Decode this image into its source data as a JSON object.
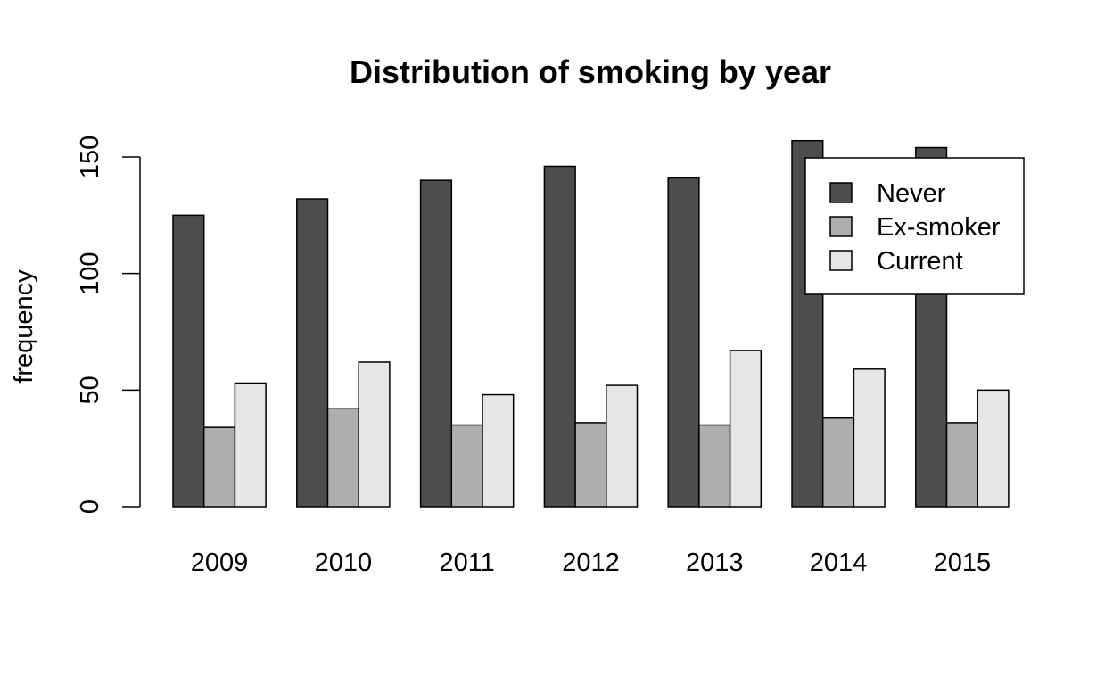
{
  "chart_data": {
    "type": "bar",
    "title": "Distribution of smoking by year",
    "xlabel": "",
    "ylabel": "frequency",
    "categories": [
      "2009",
      "2010",
      "2011",
      "2012",
      "2013",
      "2014",
      "2015"
    ],
    "series": [
      {
        "name": "Never",
        "color": "#4d4d4d",
        "values": [
          125,
          132,
          140,
          146,
          141,
          157,
          154
        ]
      },
      {
        "name": "Ex-smoker",
        "color": "#aeaeae",
        "values": [
          34,
          42,
          35,
          36,
          35,
          38,
          36
        ]
      },
      {
        "name": "Current",
        "color": "#e6e6e6",
        "values": [
          53,
          62,
          48,
          52,
          67,
          59,
          50
        ]
      }
    ],
    "ylim": [
      0,
      150
    ],
    "yticks": [
      0,
      50,
      100,
      150
    ],
    "grid": false,
    "legend_position": "top-right"
  }
}
